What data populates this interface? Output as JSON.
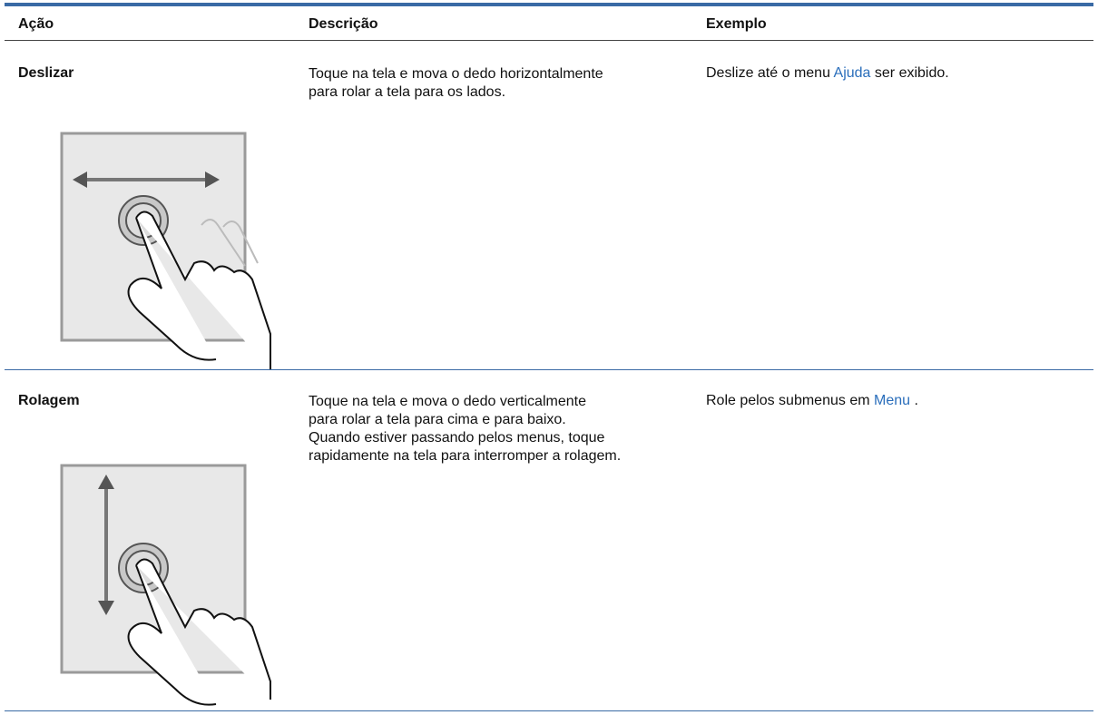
{
  "table": {
    "header": [
      "Ação",
      "Descrição",
      "Exemplo"
    ],
    "rows": [
      {
        "action": "Deslizar",
        "description": [
          "Toque na tela e mova o dedo horizontalmente",
          "para rolar a tela para os lados."
        ],
        "example": {
          "before": "Deslize até o menu",
          "link": "Ajuda",
          "after": "ser exibido."
        }
      },
      {
        "action": "Rolagem",
        "description": [
          "Toque na tela e mova o dedo verticalmente",
          "para rolar a tela para cima e para baixo.",
          "Quando estiver passando pelos menus, toque",
          "rapidamente na tela para interromper a rolagem."
        ],
        "example": {
          "before": "Role pelos submenus em",
          "link": "Menu",
          "after": "."
        }
      }
    ]
  }
}
